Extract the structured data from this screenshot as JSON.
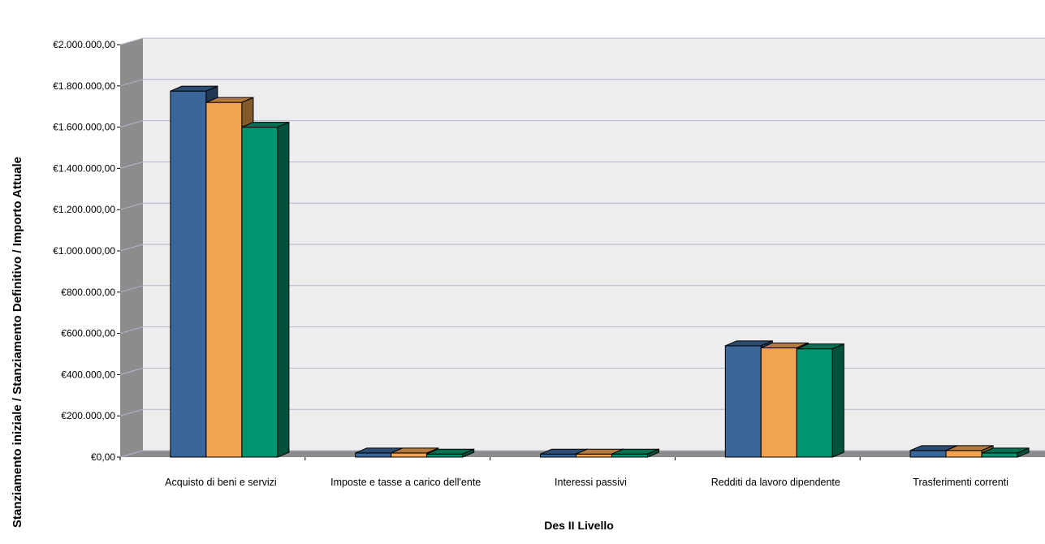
{
  "chart_data": {
    "type": "bar",
    "title": "",
    "xlabel": "Des II Livello",
    "ylabel": "Stanziamento iniziale / Stanziamento Definitivo / Importo Attuale",
    "ylim": [
      0,
      2000000
    ],
    "yticks": [
      0,
      200000,
      400000,
      600000,
      800000,
      1000000,
      1200000,
      1400000,
      1600000,
      1800000,
      2000000
    ],
    "ytick_labels": [
      "€0,00",
      "€200.000,00",
      "€400.000,00",
      "€600.000,00",
      "€800.000,00",
      "€1.000.000,00",
      "€1.200.000,00",
      "€1.400.000,00",
      "€1.600.000,00",
      "€1.800.000,00",
      "€2.000.000,00"
    ],
    "categories": [
      "Acquisto di beni e servizi",
      "Imposte e tasse a carico dell'ente",
      "Interessi passivi",
      "Redditi da lavoro dipendente",
      "Trasferimenti correnti"
    ],
    "series": [
      {
        "values": [
          1775000,
          20000,
          15000,
          540000,
          32000
        ],
        "color": "#3a6699"
      },
      {
        "values": [
          1720000,
          20000,
          15000,
          530000,
          32000
        ],
        "color": "#f0a452"
      },
      {
        "values": [
          1600000,
          15000,
          15000,
          525000,
          20000
        ],
        "color": "#00956e"
      }
    ],
    "grid": true,
    "legend": "none",
    "style": "3d"
  }
}
